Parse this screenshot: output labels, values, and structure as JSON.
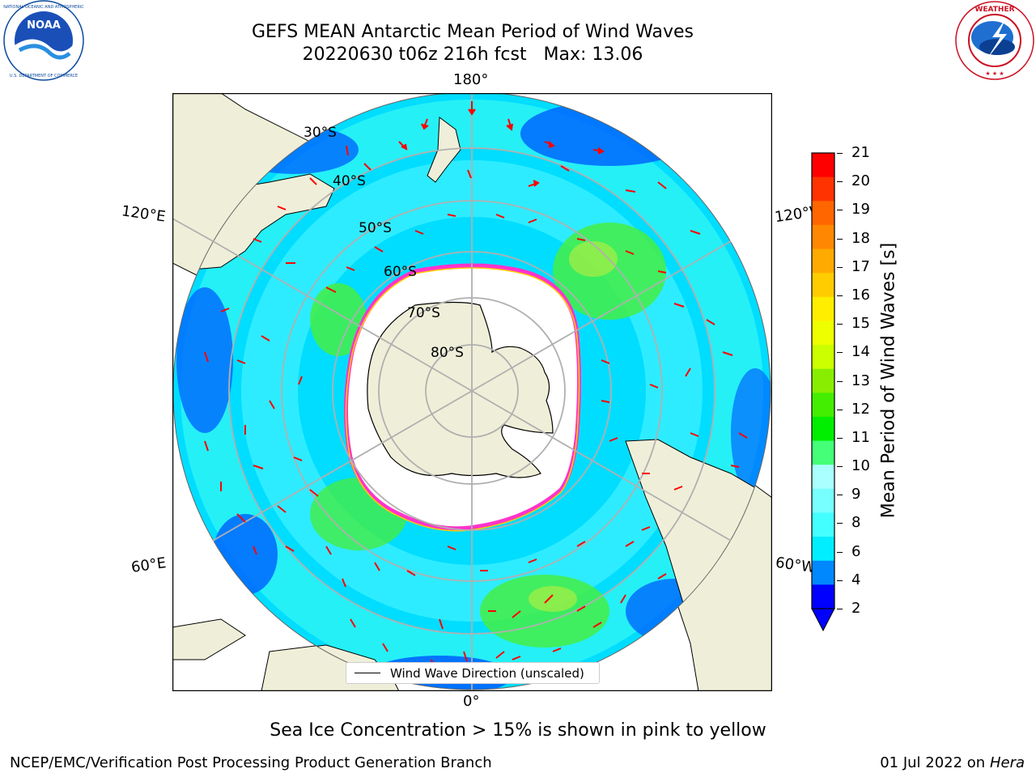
{
  "title": {
    "line1": "GEFS MEAN Antarctic Mean Period of Wind Waves",
    "line2": "20220630 t06z 216h fcst   Max: 13.06"
  },
  "logos": {
    "left": {
      "name": "NOAA",
      "ring_text": "NATIONAL OCEANIC AND ATMOSPHERIC ADMINISTRATION · U.S. DEPARTMENT OF COMMERCE"
    },
    "right": {
      "name": "NATIONAL WEATHER SERVICE"
    }
  },
  "map": {
    "longitude_labels": {
      "top": "180°",
      "bottom": "0°",
      "left_upper": "120°E",
      "left_lower": "60°E",
      "right_upper": "120°W",
      "right_lower": "60°W"
    },
    "latitude_labels": [
      "30°S",
      "40°S",
      "50°S",
      "60°S",
      "70°S",
      "80°S"
    ],
    "legend": "Wind Wave Direction (unscaled)",
    "colors": {
      "land": "#efefd9",
      "ocean_low": "#00ddff",
      "ocean_mid": "#44ffee",
      "green": "#44ee44",
      "dark_blue": "#0066ff",
      "ice_edge": "#ff33cc",
      "arrow": "#ff0000"
    }
  },
  "colorbar": {
    "label": "Mean Period of Wind Waves [s]",
    "ticks": [
      "21",
      "20",
      "19",
      "18",
      "17",
      "16",
      "15",
      "14",
      "13",
      "12",
      "11",
      "10",
      "9",
      "8",
      "6",
      "4",
      "2"
    ],
    "colors": [
      "#ff0000",
      "#ff3300",
      "#ff6600",
      "#ff8800",
      "#ffaa00",
      "#ffcc00",
      "#ffee00",
      "#eeff00",
      "#ccff00",
      "#88ee00",
      "#44ee00",
      "#00ee00",
      "#44ff77",
      "#aaffff",
      "#77ffff",
      "#44ffff",
      "#00eeff",
      "#0088ff",
      "#0000ff"
    ]
  },
  "caption": "Sea Ice Concentration > 15% is shown in pink to yellow",
  "footer": {
    "left": "NCEP/EMC/Verification Post Processing Product Generation Branch",
    "right_date": "01 Jul 2022 on ",
    "right_host": "Hera"
  }
}
